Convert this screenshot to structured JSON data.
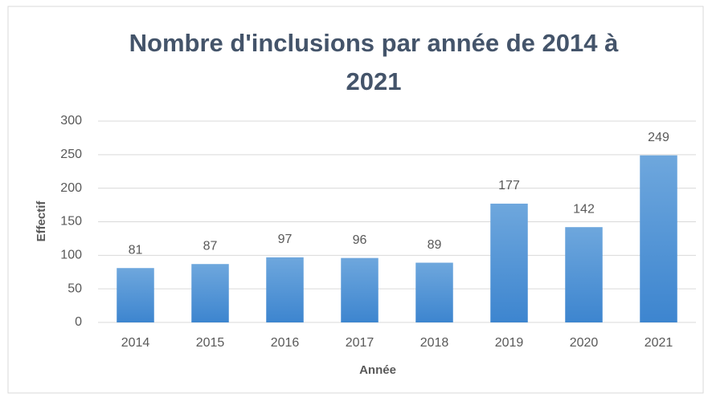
{
  "chart_data": {
    "type": "bar",
    "title": "Nombre d'inclusions  par année de 2014 à 2021",
    "x_label": "Année",
    "y_label": "Effectif",
    "categories": [
      "2014",
      "2015",
      "2016",
      "2017",
      "2018",
      "2019",
      "2020",
      "2021"
    ],
    "values": [
      81,
      87,
      97,
      96,
      89,
      177,
      142,
      249
    ],
    "color": "#5b9bd5",
    "ylim": [
      0,
      300
    ],
    "yticks": [
      0,
      50,
      100,
      150,
      200,
      250,
      300
    ],
    "grid": true
  }
}
